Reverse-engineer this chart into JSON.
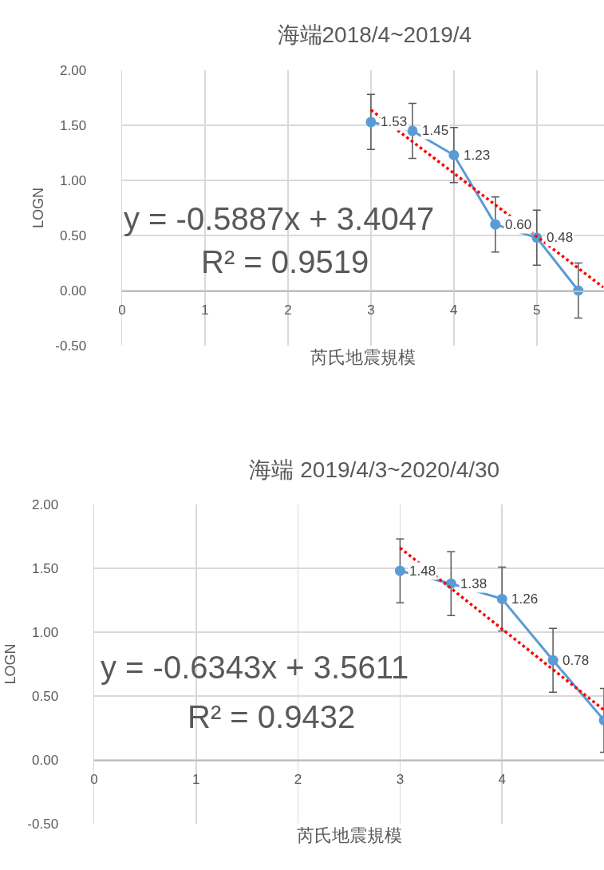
{
  "chart_data": [
    {
      "type": "line",
      "title": "海端2018/4~2019/4",
      "xlabel": "芮氏地震規模",
      "ylabel": "LOGN",
      "xlim": [
        0,
        5.81
      ],
      "xticks": [
        0,
        1,
        2,
        3,
        4,
        5
      ],
      "ylim": [
        -0.5,
        2
      ],
      "yticks": [
        {
          "value": -0.5,
          "label": "-0.50"
        },
        {
          "value": 0,
          "label": "0.00"
        },
        {
          "value": 0.5,
          "label": "0.50"
        },
        {
          "value": 1,
          "label": "1.00"
        },
        {
          "value": 1.5,
          "label": "1.50"
        },
        {
          "value": 2,
          "label": "2.00"
        }
      ],
      "grid": true,
      "annotations": [
        "y = -0.5887x + 3.4047",
        "R² = 0.9519"
      ],
      "series": [
        {
          "color": "#5b9bd5",
          "marker": "circle",
          "line_style": "solid",
          "x": [
            3,
            3.5,
            4,
            4.5,
            5,
            5.5
          ],
          "values": [
            1.53,
            1.45,
            1.23,
            0.6,
            0.48,
            0
          ],
          "errors": [
            0.25,
            0.25,
            0.25,
            0.25,
            0.25,
            0.25
          ],
          "value_labels": [
            "1.53",
            "1.45",
            "1.23",
            "0.60",
            "0.48",
            null
          ]
        },
        {
          "type": "line",
          "color": "#ff0000",
          "marker": "none",
          "line_style": "dotted",
          "x": [
            3,
            5.8
          ],
          "values": [
            1.64,
            0.03
          ]
        }
      ]
    },
    {
      "type": "line",
      "title": "海端 2019/4/3~2020/4/30",
      "xlabel": "芮氏地震規模",
      "ylabel": "LOGN",
      "xlim": [
        0,
        5
      ],
      "xticks": [
        0,
        1,
        2,
        3,
        4
      ],
      "ylim": [
        -0.5,
        2
      ],
      "yticks": [
        {
          "value": -0.5,
          "label": "-0.50"
        },
        {
          "value": 0,
          "label": "0.00"
        },
        {
          "value": 0.5,
          "label": "0.50"
        },
        {
          "value": 1,
          "label": "1.00"
        },
        {
          "value": 1.5,
          "label": "1.50"
        },
        {
          "value": 2,
          "label": "2.00"
        }
      ],
      "grid": true,
      "annotations": [
        "y = -0.6343x + 3.5611",
        "R² = 0.9432"
      ],
      "series": [
        {
          "color": "#5b9bd5",
          "marker": "circle",
          "line_style": "solid",
          "x": [
            3,
            3.5,
            4,
            4.5,
            5
          ],
          "values": [
            1.48,
            1.38,
            1.26,
            0.78,
            0.31
          ],
          "errors": [
            0.25,
            0.25,
            0.25,
            0.25,
            0.25
          ],
          "value_labels": [
            "1.48",
            "1.38",
            "1.26",
            "0.78",
            null
          ]
        },
        {
          "type": "line",
          "color": "#ff0000",
          "marker": "none",
          "line_style": "dotted",
          "x": [
            3,
            5
          ],
          "values": [
            1.66,
            0.39
          ]
        }
      ]
    }
  ]
}
